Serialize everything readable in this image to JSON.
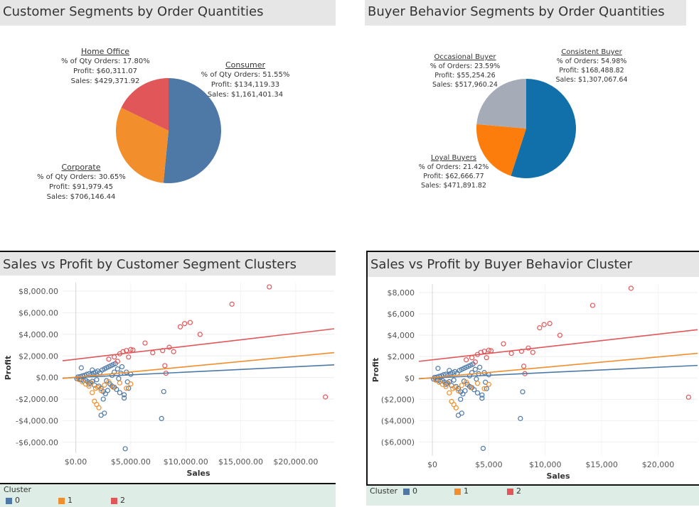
{
  "colors": {
    "blue": "#4e79a7",
    "orange": "#f28e2b",
    "red": "#e15759",
    "consistent": "#1170aa",
    "occasional": "#a5acb7",
    "loyal": "#fc7d0b"
  },
  "legend": {
    "title": "Cluster",
    "items": [
      {
        "label": "0",
        "color": "#4e79a7"
      },
      {
        "label": "1",
        "color": "#f28e2b"
      },
      {
        "label": "2",
        "color": "#e15759"
      }
    ]
  },
  "chart_data": [
    {
      "type": "pie",
      "title": "Customer Segments by Order Quantities",
      "slices": [
        {
          "name": "Consumer",
          "value": 51.55,
          "color": "#4e79a7",
          "lines": [
            "% of Qty Orders: 51.55%",
            "Profit: $134,119.33",
            "Sales: $1,161,401.34"
          ]
        },
        {
          "name": "Corporate",
          "value": 30.65,
          "color": "#f28e2b",
          "lines": [
            "% of Qty Orders: 30.65%",
            "Profit: $91,979.45",
            "Sales: $706,146.44"
          ]
        },
        {
          "name": "Home Office",
          "value": 17.8,
          "color": "#e15759",
          "lines": [
            "% of Qty Orders: 17.80%",
            "Profit: $60,311.07",
            "Sales: $429,371.92"
          ]
        }
      ]
    },
    {
      "type": "pie",
      "title": "Buyer Behavior Segments by Order Quantities",
      "slices": [
        {
          "name": "Consistent Buyer",
          "value": 54.98,
          "color": "#1170aa",
          "lines": [
            "% of Orders: 54.98%",
            "Profit: $168,488.82",
            "Sales: $1,307,067.64"
          ]
        },
        {
          "name": "Loyal Buyers",
          "value": 21.42,
          "color": "#fc7d0b",
          "lines": [
            "% of Orders: 21.42%",
            "Profit: $62,666.77",
            "Sales: $471,891.82"
          ]
        },
        {
          "name": "Occasional Buyer",
          "value": 23.59,
          "color": "#a5acb7",
          "lines": [
            "% of Orders: 23.59%",
            "Profit: $55,254.26",
            "Sales: $517,960.24"
          ]
        }
      ]
    },
    {
      "type": "scatter",
      "title": "Sales vs Profit by Customer Segment Clusters",
      "xlabel": "Sales",
      "ylabel": "Profit",
      "xlim": [
        -1200,
        23500
      ],
      "ylim": [
        -7000,
        8800
      ],
      "xticks": [
        0,
        5000,
        10000,
        15000,
        20000
      ],
      "xtick_labels": [
        "$0.00",
        "$5,000.00",
        "$10,000.00",
        "$15,000.00",
        "$20,000.00"
      ],
      "yticks": [
        8000,
        6000,
        4000,
        2000,
        0,
        -2000,
        -4000,
        -6000
      ],
      "ytick_labels": [
        "$8,000.00",
        "$6,000.00",
        "$4,000.00",
        "$2,000.00",
        "$0.00",
        "-$2,000.00",
        "-$4,000.00",
        "-$6,000.00"
      ],
      "trend_lines": [
        {
          "cluster": "0",
          "y_at_x0": 0,
          "slope": 0.05,
          "color": "#4e79a7"
        },
        {
          "cluster": "1",
          "y_at_x0": 30,
          "slope": 0.097,
          "color": "#f28e2b"
        },
        {
          "cluster": "2",
          "y_at_x0": 1700,
          "slope": 0.12,
          "color": "#e15759"
        }
      ],
      "series": [
        {
          "name": "0",
          "color": "#4e79a7",
          "points": [
            [
              100,
              -100
            ],
            [
              200,
              50
            ],
            [
              300,
              -150
            ],
            [
              400,
              80
            ],
            [
              500,
              -200
            ],
            [
              600,
              150
            ],
            [
              700,
              -300
            ],
            [
              800,
              200
            ],
            [
              900,
              -250
            ],
            [
              1000,
              300
            ],
            [
              1100,
              -400
            ],
            [
              1200,
              350
            ],
            [
              1300,
              -500
            ],
            [
              1400,
              250
            ],
            [
              1500,
              -350
            ],
            [
              1600,
              400
            ],
            [
              1700,
              -700
            ],
            [
              1800,
              500
            ],
            [
              1900,
              -200
            ],
            [
              2000,
              600
            ],
            [
              2100,
              -800
            ],
            [
              2200,
              450
            ],
            [
              2300,
              -1000
            ],
            [
              2400,
              700
            ],
            [
              2500,
              -1300
            ],
            [
              2600,
              800
            ],
            [
              2700,
              -1500
            ],
            [
              2800,
              900
            ],
            [
              2900,
              -1200
            ],
            [
              3000,
              1000
            ],
            [
              3100,
              -600
            ],
            [
              3200,
              1100
            ],
            [
              3300,
              -800
            ],
            [
              3400,
              1200
            ],
            [
              3500,
              -900
            ],
            [
              3600,
              1300
            ],
            [
              3700,
              -1100
            ],
            [
              3800,
              800
            ],
            [
              4000,
              -1400
            ],
            [
              4200,
              1000
            ],
            [
              4400,
              -1600
            ],
            [
              4600,
              500
            ],
            [
              4800,
              -1000
            ],
            [
              5000,
              300
            ],
            [
              2300,
              -3500
            ],
            [
              2600,
              -3300
            ],
            [
              4400,
              -1900
            ],
            [
              4500,
              -6600
            ],
            [
              8000,
              -1300
            ],
            [
              7800,
              -3800
            ],
            [
              500,
              900
            ],
            [
              1500,
              700
            ],
            [
              2500,
              -2000
            ],
            [
              3500,
              500
            ],
            [
              1200,
              -600
            ],
            [
              2800,
              -300
            ],
            [
              3300,
              200
            ],
            [
              3900,
              -100
            ],
            [
              4100,
              400
            ],
            [
              4700,
              -400
            ]
          ]
        },
        {
          "name": "1",
          "color": "#f28e2b",
          "points": [
            [
              300,
              -200
            ],
            [
              600,
              -400
            ],
            [
              900,
              -600
            ],
            [
              1200,
              -800
            ],
            [
              1500,
              -1400
            ],
            [
              1700,
              -2200
            ],
            [
              1900,
              -2500
            ],
            [
              2100,
              -2800
            ],
            [
              2300,
              -1200
            ],
            [
              1800,
              -1000
            ],
            [
              2600,
              -700
            ],
            [
              3000,
              -400
            ],
            [
              3400,
              -900
            ],
            [
              4000,
              -500
            ],
            [
              4600,
              -1000
            ],
            [
              5000,
              -600
            ],
            [
              1400,
              -500
            ],
            [
              2000,
              -900
            ]
          ]
        },
        {
          "name": "2",
          "color": "#e15759",
          "points": [
            [
              3000,
              1700
            ],
            [
              3500,
              1900
            ],
            [
              4000,
              2200
            ],
            [
              4300,
              2400
            ],
            [
              4600,
              2500
            ],
            [
              5000,
              2600
            ],
            [
              5200,
              2550
            ],
            [
              6300,
              3200
            ],
            [
              7000,
              2300
            ],
            [
              7900,
              2500
            ],
            [
              8500,
              2800
            ],
            [
              8900,
              2400
            ],
            [
              9500,
              4700
            ],
            [
              9900,
              5000
            ],
            [
              10400,
              5100
            ],
            [
              11300,
              4000
            ],
            [
              14200,
              6800
            ],
            [
              17600,
              8400
            ],
            [
              22700,
              -1800
            ],
            [
              8200,
              400
            ],
            [
              8100,
              1100
            ],
            [
              3800,
              1500
            ],
            [
              4800,
              1900
            ]
          ]
        }
      ]
    },
    {
      "type": "scatter",
      "title": "Sales vs Profit by Buyer Behavior Cluster",
      "xlabel": "Sales",
      "ylabel": "Profit",
      "xlim": [
        -1200,
        23500
      ],
      "ylim": [
        -7300,
        8800
      ],
      "xticks": [
        0,
        5000,
        10000,
        15000,
        20000
      ],
      "xtick_labels": [
        "$0",
        "$5,000",
        "$10,000",
        "$15,000",
        "$20,000"
      ],
      "yticks": [
        8000,
        6000,
        4000,
        2000,
        0,
        -2000,
        -4000,
        -6000
      ],
      "ytick_labels": [
        "$8,000",
        "$6,000",
        "$4,000",
        "$2,000",
        "$0",
        "($2,000)",
        "($4,000)",
        "($6,000)"
      ],
      "trend_lines": [
        {
          "cluster": "0",
          "y_at_x0": 0,
          "slope": 0.05,
          "color": "#4e79a7"
        },
        {
          "cluster": "1",
          "y_at_x0": 30,
          "slope": 0.097,
          "color": "#f28e2b"
        },
        {
          "cluster": "2",
          "y_at_x0": 1700,
          "slope": 0.12,
          "color": "#e15759"
        }
      ],
      "series": [
        {
          "name": "0",
          "color": "#4e79a7",
          "points": [
            [
              100,
              -100
            ],
            [
              200,
              50
            ],
            [
              300,
              -150
            ],
            [
              400,
              80
            ],
            [
              500,
              -200
            ],
            [
              600,
              150
            ],
            [
              700,
              -300
            ],
            [
              800,
              200
            ],
            [
              900,
              -250
            ],
            [
              1000,
              300
            ],
            [
              1100,
              -400
            ],
            [
              1200,
              350
            ],
            [
              1300,
              -500
            ],
            [
              1400,
              250
            ],
            [
              1500,
              -350
            ],
            [
              1600,
              400
            ],
            [
              1700,
              -700
            ],
            [
              1800,
              500
            ],
            [
              1900,
              -200
            ],
            [
              2000,
              600
            ],
            [
              2100,
              -800
            ],
            [
              2200,
              450
            ],
            [
              2300,
              -1000
            ],
            [
              2400,
              700
            ],
            [
              2500,
              -1300
            ],
            [
              2600,
              800
            ],
            [
              2700,
              -1500
            ],
            [
              2800,
              900
            ],
            [
              2900,
              -1200
            ],
            [
              3000,
              1000
            ],
            [
              3100,
              -600
            ],
            [
              3200,
              1100
            ],
            [
              3300,
              -800
            ],
            [
              3400,
              1200
            ],
            [
              3500,
              -900
            ],
            [
              3600,
              1300
            ],
            [
              3700,
              -1100
            ],
            [
              3800,
              800
            ],
            [
              4000,
              -1400
            ],
            [
              4200,
              1000
            ],
            [
              4400,
              -1600
            ],
            [
              4600,
              500
            ],
            [
              4800,
              -1000
            ],
            [
              5000,
              300
            ],
            [
              2300,
              -3500
            ],
            [
              2600,
              -3300
            ],
            [
              4400,
              -1900
            ],
            [
              4500,
              -6600
            ],
            [
              8000,
              -1300
            ],
            [
              7800,
              -3800
            ],
            [
              500,
              900
            ],
            [
              1500,
              700
            ],
            [
              2500,
              -2000
            ],
            [
              3500,
              500
            ],
            [
              1200,
              -600
            ],
            [
              2800,
              -300
            ],
            [
              3300,
              200
            ],
            [
              3900,
              -100
            ],
            [
              4100,
              400
            ],
            [
              4700,
              -400
            ]
          ]
        },
        {
          "name": "1",
          "color": "#f28e2b",
          "points": [
            [
              300,
              -200
            ],
            [
              600,
              -400
            ],
            [
              900,
              -600
            ],
            [
              1200,
              -800
            ],
            [
              1500,
              -1400
            ],
            [
              1700,
              -2200
            ],
            [
              1900,
              -2500
            ],
            [
              2100,
              -2800
            ],
            [
              2300,
              -1200
            ],
            [
              1800,
              -1000
            ],
            [
              2600,
              -700
            ],
            [
              3000,
              -400
            ],
            [
              3400,
              -900
            ],
            [
              4000,
              -500
            ],
            [
              4600,
              -1000
            ],
            [
              5000,
              -600
            ],
            [
              1400,
              -500
            ],
            [
              2000,
              -900
            ]
          ]
        },
        {
          "name": "2",
          "color": "#e15759",
          "points": [
            [
              3000,
              1700
            ],
            [
              3500,
              1900
            ],
            [
              4000,
              2200
            ],
            [
              4300,
              2400
            ],
            [
              4600,
              2500
            ],
            [
              5000,
              2600
            ],
            [
              5200,
              2550
            ],
            [
              6300,
              3200
            ],
            [
              7000,
              2300
            ],
            [
              7900,
              2500
            ],
            [
              8500,
              2800
            ],
            [
              8900,
              2400
            ],
            [
              9500,
              4700
            ],
            [
              9900,
              5000
            ],
            [
              10400,
              5100
            ],
            [
              11300,
              4000
            ],
            [
              14200,
              6800
            ],
            [
              17600,
              8400
            ],
            [
              22700,
              -1800
            ],
            [
              8200,
              400
            ],
            [
              8100,
              1100
            ],
            [
              3800,
              1500
            ],
            [
              4800,
              1900
            ]
          ]
        }
      ]
    }
  ]
}
